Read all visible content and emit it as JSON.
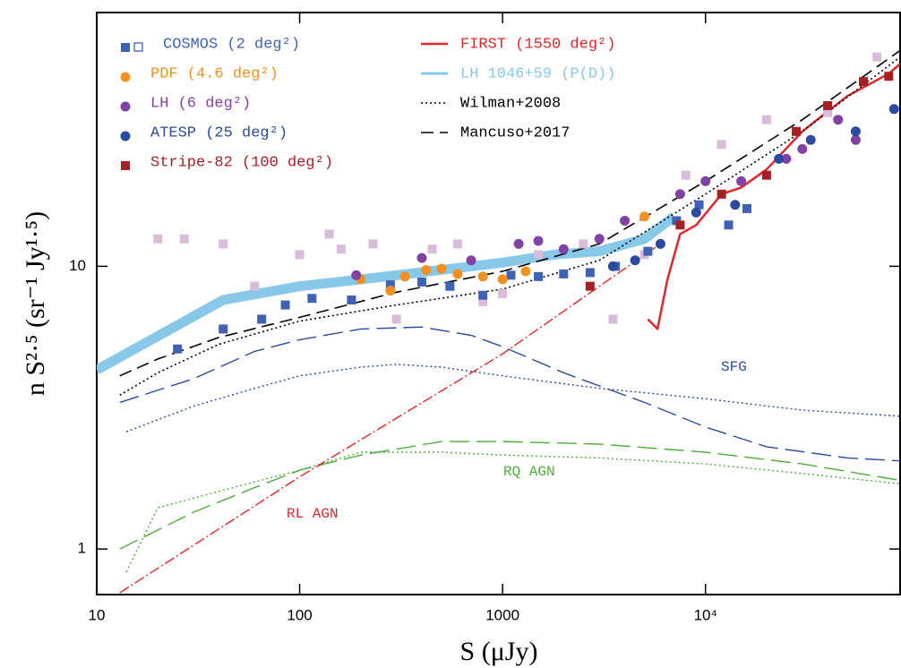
{
  "chart_data": {
    "type": "scatter",
    "xlabel": "S (μJy)",
    "ylabel": "n S²·⁵ (sr⁻¹ Jy¹·⁵)",
    "xlim": [
      10,
      91000
    ],
    "ylim": [
      0.69,
      79
    ],
    "xscale": "log",
    "yscale": "log",
    "xticks": [
      10,
      100,
      1000,
      {
        "value": 10000,
        "label": "10⁴"
      }
    ],
    "yticks": [
      1,
      10
    ],
    "series": [
      {
        "color": "#d9bcd9",
        "mark": "square",
        "x": [
          20,
          27,
          42,
          60,
          100,
          140,
          160,
          230,
          300,
          450,
          600,
          800,
          1000,
          1500,
          2500,
          3500,
          5000,
          8000,
          12000,
          20000,
          40000,
          70000
        ],
        "values": [
          12.5,
          12.5,
          12,
          8.5,
          11,
          13,
          11.5,
          12,
          6.5,
          11.5,
          12,
          7.5,
          8,
          11,
          12,
          6.5,
          11,
          21,
          27,
          33,
          35,
          55
        ]
      },
      {
        "name": "COSMOS (2 deg²)",
        "color": "#3f62b5",
        "mark": "square",
        "x": [
          25,
          42,
          65,
          85,
          115,
          180,
          280,
          400,
          550,
          800,
          1100,
          1500,
          2000,
          2700,
          3600,
          5200,
          7200,
          9300,
          13000,
          16000
        ],
        "values": [
          5.1,
          6,
          6.5,
          7.3,
          7.7,
          7.6,
          8.6,
          8.8,
          8.5,
          7.9,
          9.3,
          9.2,
          9.4,
          9.5,
          10,
          11.3,
          14.5,
          16.5,
          14,
          16
        ]
      },
      {
        "name": "PDF (4.6 deg²)",
        "color": "#f39020",
        "mark": "circle",
        "x": [
          200,
          280,
          330,
          420,
          500,
          600,
          800,
          1000,
          1300,
          5000
        ],
        "values": [
          9,
          8.2,
          9.2,
          9.7,
          9.8,
          9.4,
          9.2,
          9,
          9.6,
          15
        ]
      },
      {
        "name": "LH (6 deg²)",
        "color": "#8043a3",
        "mark": "circle",
        "x": [
          190,
          400,
          700,
          1200,
          1500,
          2000,
          3000,
          4000,
          7500,
          10000,
          15000,
          25000,
          30000,
          45000,
          55000
        ],
        "values": [
          9.3,
          10.7,
          10.5,
          12,
          12.3,
          11.5,
          12.5,
          14.5,
          18,
          20,
          20,
          24,
          26,
          33,
          28
        ]
      },
      {
        "name": "ATESP (25 deg²)",
        "color": "#2c4a9f",
        "mark": "circle",
        "x": [
          3500,
          4500,
          6000,
          9000,
          14000,
          23000,
          33000,
          55000,
          85000
        ],
        "values": [
          10,
          10.5,
          12,
          15.5,
          16.5,
          24,
          28,
          30,
          36
        ]
      },
      {
        "name": "Stripe-82 (100 deg²)",
        "color": "#a51f25",
        "mark": "square",
        "x": [
          2700,
          7500,
          12000,
          20000,
          28000,
          40000,
          60000,
          80000
        ],
        "values": [
          8.5,
          14,
          18,
          21,
          30,
          37,
          45,
          47
        ]
      },
      {
        "name": "FIRST (1550 deg²)",
        "color": "#e3262b",
        "mark": "line",
        "width": 2.5,
        "x": [
          5200,
          5800,
          6500,
          7500,
          9000,
          12000,
          15000,
          20000,
          30000,
          50000,
          80000,
          91000
        ],
        "values": [
          6.5,
          6,
          9,
          13,
          14,
          18,
          19,
          22,
          30,
          40,
          48,
          52
        ]
      },
      {
        "name": "LH 1046+59 (P(D))",
        "color": "#88c8e8",
        "mark": "line",
        "width": 11,
        "x": [
          10,
          42,
          100,
          300,
          1000,
          1800,
          3000,
          5000,
          7000
        ],
        "values": [
          4.3,
          7.6,
          8.5,
          9.3,
          10.3,
          11,
          11.3,
          12.5,
          15
        ]
      },
      {
        "name": "Wilman+2008",
        "color": "#000000",
        "mark": "line",
        "dash": "2 3",
        "width": 1.6,
        "x": [
          13,
          20,
          40,
          100,
          300,
          1000,
          3000,
          10000,
          30000,
          91000
        ],
        "values": [
          3.5,
          4.2,
          5.3,
          6.4,
          7.3,
          8.3,
          10.5,
          18,
          30,
          55
        ]
      },
      {
        "name": "Mancuso+2017",
        "color": "#000000",
        "mark": "line",
        "dash": "14 7",
        "width": 1.6,
        "x": [
          13,
          20,
          40,
          100,
          300,
          1000,
          3000,
          10000,
          30000,
          91000
        ],
        "values": [
          4.1,
          4.7,
          5.6,
          6.6,
          8.1,
          9.6,
          12,
          20,
          33,
          58
        ]
      },
      {
        "color": "#2c4a9f",
        "mark": "line",
        "dash": "22 8",
        "width": 1.4,
        "x": [
          13,
          30,
          60,
          100,
          200,
          400,
          700,
          1000,
          2000,
          5000,
          10000,
          20000,
          50000,
          91000
        ],
        "values": [
          3.3,
          4,
          5,
          5.5,
          6,
          6.1,
          5.7,
          5.2,
          4.2,
          3.3,
          2.7,
          2.3,
          2.1,
          2.05
        ]
      },
      {
        "color": "#2c4a9f",
        "mark": "line",
        "dash": "2 3",
        "width": 1.4,
        "x": [
          14,
          30,
          60,
          100,
          200,
          300,
          500,
          1000,
          3000,
          10000,
          30000,
          91000
        ],
        "values": [
          2.6,
          3.2,
          3.7,
          4.1,
          4.4,
          4.5,
          4.4,
          4.1,
          3.7,
          3.4,
          3.1,
          2.95
        ]
      },
      {
        "color": "#4caf3a",
        "mark": "line",
        "dash": "22 8",
        "width": 1.4,
        "x": [
          13,
          30,
          60,
          100,
          200,
          500,
          1000,
          3000,
          10000,
          30000,
          91000
        ],
        "values": [
          1,
          1.35,
          1.65,
          1.9,
          2.15,
          2.4,
          2.4,
          2.35,
          2.2,
          2,
          1.75
        ]
      },
      {
        "color": "#4caf3a",
        "mark": "line",
        "dash": "2 3",
        "width": 1.4,
        "x": [
          14,
          20,
          40,
          100,
          200,
          500,
          1000,
          3000,
          10000,
          30000,
          91000
        ],
        "values": [
          0.83,
          1.4,
          1.6,
          1.9,
          2.2,
          2.2,
          2.15,
          2.1,
          2,
          1.85,
          1.7
        ]
      },
      {
        "color": "#e3262b",
        "mark": "line",
        "dash": "12 3 2 3",
        "width": 1.4,
        "x": [
          13,
          100,
          1000,
          3000,
          6000
        ],
        "values": [
          0.7,
          1.8,
          4.9,
          8.5,
          12
        ]
      }
    ],
    "annotations": [
      "SFG",
      "RQ AGN",
      "RL AGN"
    ]
  }
}
